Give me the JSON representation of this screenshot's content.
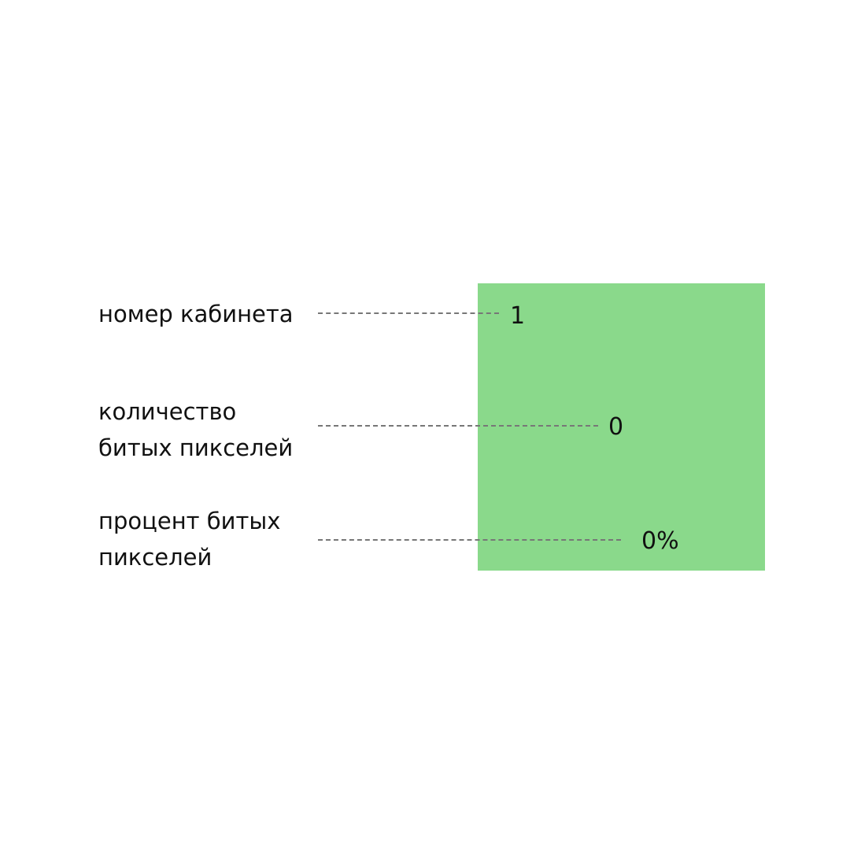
{
  "tile": {
    "color": "#8ad98b"
  },
  "rows": [
    {
      "label_lines": [
        "номер кабинета"
      ],
      "value": "1"
    },
    {
      "label_lines": [
        "количество",
        "битых пикселей"
      ],
      "value": "0"
    },
    {
      "label_lines": [
        "процент битых",
        "пикселей"
      ],
      "value": "0%"
    }
  ]
}
